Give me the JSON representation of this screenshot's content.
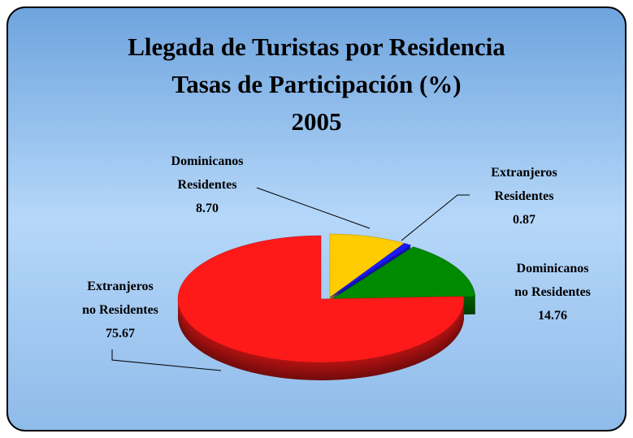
{
  "chart_data": {
    "type": "pie3d",
    "title": [
      "Llegada de Turistas por Residencia",
      "Tasas de Participación (%)",
      "2005"
    ],
    "categories": [
      "Dominicanos\nResidentes",
      "Extranjeros\nResidentes",
      "Dominicanos\nno Residentes",
      "Extranjeros\nno Residentes"
    ],
    "values": [
      8.7,
      0.87,
      14.76,
      75.67
    ],
    "value_labels": [
      "8.70",
      "0.87",
      "14.76",
      "75.67"
    ],
    "colors": [
      "#ffcc00",
      "#1a1aff",
      "#008a00",
      "#ff1a1a"
    ]
  }
}
